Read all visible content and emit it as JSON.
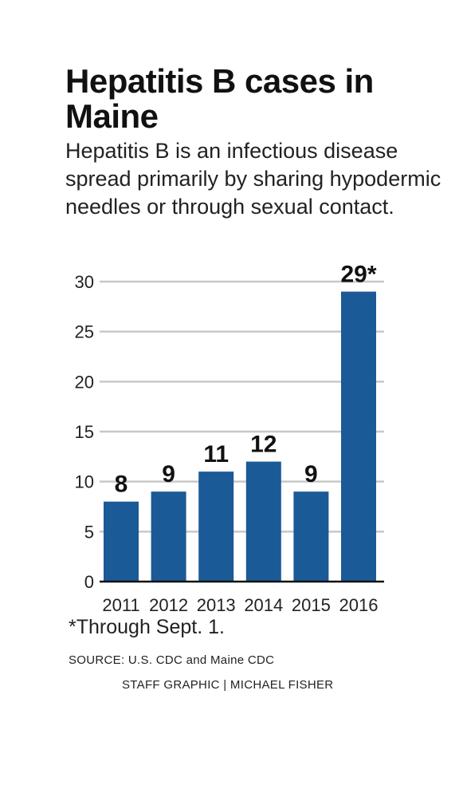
{
  "chart_data": {
    "type": "bar",
    "title": "Hepatitis B cases in Maine",
    "subtitle": "Hepatitis B is an infectious disease spread primarily by sharing hypodermic needles or through sexual contact.",
    "categories": [
      "2011",
      "2012",
      "2013",
      "2014",
      "2015",
      "2016"
    ],
    "values": [
      8,
      9,
      11,
      12,
      9,
      29
    ],
    "data_labels": [
      "8",
      "9",
      "11",
      "12",
      "9",
      "29*"
    ],
    "ylim": [
      0,
      30
    ],
    "yticks": [
      0,
      5,
      10,
      15,
      20,
      25,
      30
    ],
    "xlabel": "",
    "ylabel": "",
    "grid": true,
    "bar_color": "#1a5a96",
    "grid_color": "#c8c8c8"
  },
  "footnote": "*Through Sept. 1.",
  "source": "SOURCE: U.S. CDC and Maine CDC",
  "credit": "STAFF GRAPHIC | MICHAEL FISHER"
}
